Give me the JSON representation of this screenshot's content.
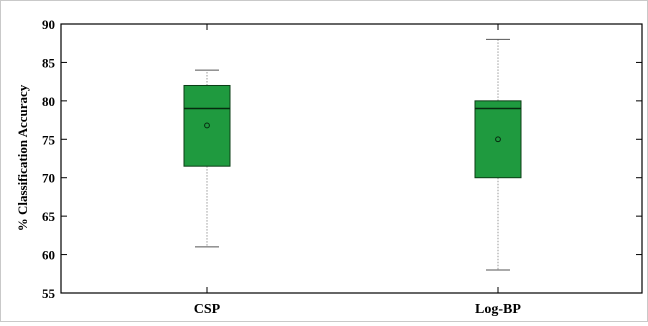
{
  "chart_data": {
    "type": "box",
    "title": "",
    "xlabel": "",
    "ylabel": "% Classification Accuracy",
    "ylim": [
      55,
      90
    ],
    "yticks": [
      55,
      60,
      65,
      70,
      75,
      80,
      85,
      90
    ],
    "grid": false,
    "legend": "none",
    "box_color": "#1f9a3f",
    "box_edge_color": "#0b3d16",
    "whisker_color": "#9a9a9a",
    "categories": [
      "CSP",
      "Log-BP"
    ],
    "boxes": [
      {
        "label": "CSP",
        "whisker_low": 61,
        "q1": 71.5,
        "median": 79,
        "q3": 82,
        "whisker_high": 84,
        "mean": 76.8
      },
      {
        "label": "Log-BP",
        "whisker_low": 58,
        "q1": 70,
        "median": 79,
        "q3": 80,
        "whisker_high": 88,
        "mean": 75
      }
    ]
  }
}
